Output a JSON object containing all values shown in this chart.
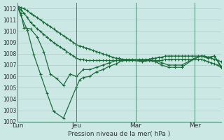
{
  "bg_color": "#cce8e4",
  "grid_color": "#aaccca",
  "line_color": "#1a6b3a",
  "xlabel": "Pression niveau de la mer( hPa )",
  "ylim": [
    1002,
    1012.5
  ],
  "yticks": [
    1002,
    1003,
    1004,
    1005,
    1006,
    1007,
    1008,
    1009,
    1010,
    1011,
    1012
  ],
  "xtick_labels": [
    "Lun",
    "Jeu",
    "Mar",
    "Mer"
  ],
  "xtick_positions": [
    0,
    18,
    36,
    54
  ],
  "vline_positions": [
    0,
    18,
    36,
    54
  ],
  "n_points": 63,
  "line_upper_x": [
    0,
    1,
    2,
    3,
    4,
    5,
    6,
    7,
    8,
    9,
    10,
    11,
    12,
    13,
    14,
    15,
    16,
    17,
    18,
    19,
    20,
    21,
    22,
    23,
    24,
    25,
    26,
    27,
    28,
    29,
    30,
    31,
    32,
    33,
    34,
    35,
    36,
    37,
    38,
    39,
    40,
    41,
    42,
    43,
    44,
    45,
    46,
    47,
    48,
    49,
    50,
    51,
    52,
    53,
    54,
    55,
    56,
    57,
    58,
    59,
    60,
    61,
    62
  ],
  "line_upper_y": [
    1012.2,
    1012.1,
    1012.0,
    1011.8,
    1011.6,
    1011.4,
    1011.2,
    1011.0,
    1010.8,
    1010.6,
    1010.4,
    1010.2,
    1010.0,
    1009.8,
    1009.6,
    1009.4,
    1009.2,
    1009.0,
    1008.8,
    1008.7,
    1008.6,
    1008.5,
    1008.4,
    1008.3,
    1008.2,
    1008.1,
    1008.0,
    1007.9,
    1007.8,
    1007.7,
    1007.6,
    1007.6,
    1007.5,
    1007.5,
    1007.5,
    1007.5,
    1007.5,
    1007.5,
    1007.5,
    1007.5,
    1007.5,
    1007.6,
    1007.6,
    1007.7,
    1007.7,
    1007.8,
    1007.8,
    1007.8,
    1007.8,
    1007.8,
    1007.8,
    1007.8,
    1007.8,
    1007.8,
    1007.8,
    1007.8,
    1007.8,
    1007.8,
    1007.7,
    1007.6,
    1007.5,
    1007.4,
    1007.3
  ],
  "line_mid_x": [
    0,
    1,
    2,
    3,
    4,
    5,
    6,
    7,
    8,
    9,
    10,
    11,
    12,
    13,
    14,
    15,
    16,
    17,
    18,
    19,
    20,
    21,
    22,
    23,
    24,
    25,
    26,
    27,
    28,
    29,
    30,
    31,
    32,
    33,
    34,
    35,
    36,
    37,
    38,
    39,
    40,
    41,
    42,
    43,
    44,
    45,
    46,
    47,
    48,
    49,
    50,
    51,
    52,
    53,
    54,
    55,
    56,
    57,
    58,
    59,
    60,
    61,
    62
  ],
  "line_mid_y": [
    1012.2,
    1011.9,
    1011.6,
    1011.2,
    1010.8,
    1010.5,
    1010.2,
    1010.0,
    1009.7,
    1009.5,
    1009.2,
    1009.0,
    1008.8,
    1008.6,
    1008.4,
    1008.2,
    1008.0,
    1007.8,
    1007.6,
    1007.5,
    1007.5,
    1007.4,
    1007.4,
    1007.4,
    1007.4,
    1007.4,
    1007.4,
    1007.4,
    1007.4,
    1007.4,
    1007.4,
    1007.4,
    1007.4,
    1007.4,
    1007.4,
    1007.4,
    1007.4,
    1007.4,
    1007.4,
    1007.4,
    1007.4,
    1007.4,
    1007.4,
    1007.4,
    1007.4,
    1007.5,
    1007.5,
    1007.5,
    1007.5,
    1007.5,
    1007.5,
    1007.5,
    1007.5,
    1007.5,
    1007.5,
    1007.5,
    1007.5,
    1007.4,
    1007.3,
    1007.2,
    1007.1,
    1007.0,
    1006.8
  ],
  "line_low_x": [
    0,
    1,
    2,
    4,
    6,
    8,
    10,
    12,
    14,
    16,
    18,
    20,
    22,
    24,
    26,
    28,
    30,
    32,
    36,
    38,
    40,
    42,
    44,
    46,
    48,
    50,
    54,
    56,
    58,
    60,
    62
  ],
  "line_low_y": [
    1012.2,
    1011.6,
    1010.3,
    1010.2,
    1009.5,
    1008.2,
    1006.2,
    1005.8,
    1005.2,
    1006.2,
    1006.0,
    1006.6,
    1006.6,
    1006.8,
    1007.0,
    1007.2,
    1007.4,
    1007.5,
    1007.4,
    1007.4,
    1007.5,
    1007.4,
    1007.2,
    1007.0,
    1007.0,
    1007.0,
    1007.6,
    1007.8,
    1007.7,
    1007.8,
    1006.9
  ],
  "line_jagged_x": [
    0,
    1,
    3,
    5,
    7,
    9,
    11,
    14,
    18,
    19,
    20,
    22,
    24,
    26,
    28,
    30,
    32,
    36,
    38,
    40,
    42,
    44,
    46,
    48,
    50,
    54,
    56,
    58,
    60,
    62
  ],
  "line_jagged_y": [
    1012.2,
    1011.4,
    1010.1,
    1007.9,
    1006.2,
    1004.5,
    1002.9,
    1002.3,
    1005.1,
    1005.7,
    1005.9,
    1006.0,
    1006.4,
    1006.6,
    1006.9,
    1007.1,
    1007.4,
    1007.4,
    1007.3,
    1007.4,
    1007.3,
    1007.0,
    1006.8,
    1006.8,
    1006.8,
    1007.6,
    1007.8,
    1007.6,
    1007.8,
    1006.8
  ]
}
